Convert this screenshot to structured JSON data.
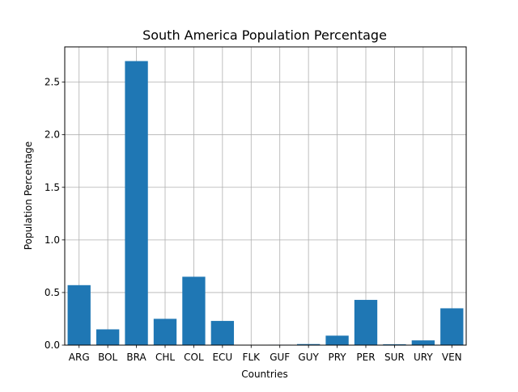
{
  "chart_data": {
    "type": "bar",
    "title": "South America Population Percentage",
    "xlabel": "Countries",
    "ylabel": "Population Percentage",
    "categories": [
      "ARG",
      "BOL",
      "BRA",
      "CHL",
      "COL",
      "ECU",
      "FLK",
      "GUF",
      "GUY",
      "PRY",
      "PER",
      "SUR",
      "URY",
      "VEN"
    ],
    "values": [
      0.57,
      0.15,
      2.7,
      0.25,
      0.65,
      0.23,
      0.0003,
      0.004,
      0.01,
      0.09,
      0.43,
      0.008,
      0.045,
      0.35
    ],
    "ylim": [
      0,
      2.835
    ],
    "yticks": [
      0.0,
      0.5,
      1.0,
      1.5,
      2.0,
      2.5
    ],
    "ytick_labels": [
      "0.0",
      "0.5",
      "1.0",
      "1.5",
      "2.0",
      "2.5"
    ],
    "grid": true,
    "bar_color": "#1f77b4",
    "grid_color": "#b0b0b0"
  }
}
